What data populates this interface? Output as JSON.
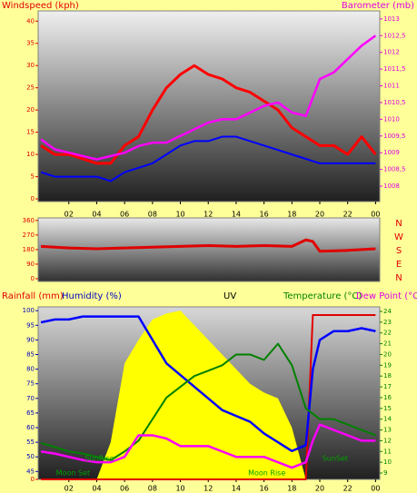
{
  "chart_data": [
    {
      "type": "line",
      "labels": [
        {
          "text": "Windspeed (kph)",
          "color": "#e00000"
        },
        {
          "text": "Barometer (mb)",
          "color": "#e000e0"
        }
      ],
      "x": [
        0,
        1,
        2,
        3,
        4,
        5,
        6,
        7,
        8,
        9,
        10,
        11,
        12,
        13,
        14,
        15,
        16,
        17,
        18,
        19,
        20,
        21,
        22,
        23,
        24
      ],
      "xlim": [
        -0.2,
        24.3
      ],
      "xticks": [
        {
          "value": 2,
          "label": "02"
        },
        {
          "value": 4,
          "label": "04"
        },
        {
          "value": 6,
          "label": "06"
        },
        {
          "value": 8,
          "label": "08"
        },
        10,
        12,
        14,
        16,
        18,
        20,
        22,
        {
          "value": 24,
          "label": "00"
        }
      ],
      "ylim": [
        -0.6,
        42.3
      ],
      "yticks": [
        0,
        5,
        10,
        15,
        20,
        25,
        30,
        35,
        40
      ],
      "ytick_color": "#e00000",
      "y2lim": [
        1007.54,
        1013.24
      ],
      "y2ticks": [
        1008,
        {
          "value": 1008.5,
          "label": "1008,5"
        },
        1009,
        {
          "value": 1009.5,
          "label": "1009,5"
        },
        1010,
        {
          "value": 1010.5,
          "label": "1010,5"
        },
        1011,
        {
          "value": 1011.5,
          "label": "1011,5"
        },
        1012,
        {
          "value": 1012.5,
          "label": "1012,5"
        },
        1013
      ],
      "y2tick_color": "#e000e0",
      "series": [
        {
          "name": "Wind gust",
          "color": "#ff0000",
          "width": 3,
          "values": [
            12,
            10,
            10,
            9,
            8,
            8,
            12,
            14,
            20,
            25,
            28,
            30,
            28,
            27,
            25,
            24,
            22,
            20,
            16,
            14,
            12,
            12,
            10,
            14,
            10
          ]
        },
        {
          "name": "Wind average",
          "color": "#0000ff",
          "width": 2,
          "values": [
            6,
            5,
            5,
            5,
            5,
            4,
            6,
            7,
            8,
            10,
            12,
            13,
            13,
            14,
            14,
            13,
            12,
            11,
            10,
            9,
            8,
            8,
            8,
            8,
            8
          ]
        },
        {
          "name": "Barometer",
          "color": "#ff00ff",
          "width": 2.5,
          "axis": "y2",
          "values": [
            1009.4,
            1009.1,
            1009.0,
            1008.9,
            1008.8,
            1008.9,
            1009.0,
            1009.2,
            1009.3,
            1009.3,
            1009.5,
            1009.7,
            1009.9,
            1010.0,
            1010.0,
            1010.2,
            1010.4,
            1010.5,
            1010.2,
            1010.1,
            1011.2,
            1011.4,
            1011.8,
            1012.2,
            1012.5
          ]
        }
      ]
    },
    {
      "type": "line",
      "compass_labels": [
        "N",
        "W",
        "S",
        "E",
        "N"
      ],
      "x": [
        0,
        2,
        4,
        6,
        8,
        10,
        12,
        14,
        16,
        18,
        19,
        19.5,
        20,
        22,
        24
      ],
      "xlim": [
        -0.2,
        24.3
      ],
      "ylim": [
        -17,
        376
      ],
      "yticks": [
        0,
        90,
        180,
        270,
        360
      ],
      "ytick_color": "#e00000",
      "series": [
        {
          "name": "Wind direction",
          "color": "#e00000",
          "width": 3,
          "values": [
            200,
            190,
            185,
            190,
            195,
            200,
            205,
            200,
            205,
            200,
            240,
            230,
            170,
            175,
            185
          ]
        }
      ]
    },
    {
      "type": "line",
      "labels": [
        {
          "text": "Rainfall (mm)",
          "color": "#e00000"
        },
        {
          "text": "Humidity (%)",
          "color": "#0000c0"
        },
        {
          "text": "UV",
          "color": "#000000"
        },
        {
          "text": "Temperature (°C)",
          "color": "#008000"
        },
        {
          "text": "Dew Point (°C)",
          "color": "#e000e0"
        }
      ],
      "annotations": [
        {
          "text": "SunRise",
          "x": 4.2,
          "color": "#00a000"
        },
        {
          "text": "SunSet",
          "x": 21.1,
          "color": "#00a000"
        },
        {
          "text": "Moon Set",
          "x": 2.3,
          "color": "#00a000"
        },
        {
          "text": "Moon Rise",
          "x": 16.2,
          "color": "#00a000"
        }
      ],
      "x": [
        0,
        1,
        2,
        3,
        4,
        5,
        6,
        7,
        8,
        9,
        10,
        11,
        12,
        13,
        14,
        15,
        16,
        17,
        18,
        19,
        19.5,
        20,
        21,
        22,
        23,
        24
      ],
      "xlim": [
        -0.2,
        24.3
      ],
      "xticks": [
        {
          "value": 2,
          "label": "02"
        },
        {
          "value": 4,
          "label": "04"
        },
        {
          "value": 6,
          "label": "06"
        },
        {
          "value": 8,
          "label": "08"
        },
        10,
        12,
        14,
        16,
        18,
        20,
        22,
        {
          "value": 24,
          "label": "00"
        }
      ],
      "ylim": [
        42.3,
        101.3
      ],
      "yticks": [
        45,
        50,
        55,
        60,
        65,
        70,
        75,
        80,
        85,
        90,
        95,
        100
      ],
      "ytick_color": "#0000c0",
      "y2lim": [
        8.41,
        24.42
      ],
      "y2ticks": [
        9,
        10,
        11,
        12,
        13,
        14,
        15,
        16,
        17,
        18,
        19,
        20,
        21,
        22,
        23,
        24
      ],
      "y2tick_color": "#008000",
      "y3lim": [
        0,
        1.05
      ],
      "y3ticks": [
        0
      ],
      "y3tick_color": "#e00000",
      "series": [
        {
          "name": "UV",
          "color": "#ffff00",
          "style": "area",
          "values": [
            42.3,
            42.3,
            42.3,
            42.3,
            42.3,
            55,
            82,
            90,
            97,
            99,
            100,
            95,
            90,
            85,
            80,
            75,
            72,
            70,
            60,
            42.3,
            42.3,
            42.3,
            42.3,
            42.3,
            42.3,
            42.3
          ]
        },
        {
          "name": "Rainfall",
          "color": "#e00000",
          "width": 2,
          "axis": "y3",
          "values": [
            0,
            0,
            0,
            0,
            0,
            0,
            0,
            0,
            0,
            0,
            0,
            0,
            0,
            0,
            0,
            0,
            0,
            0,
            0,
            0,
            1,
            1,
            1,
            1,
            1,
            1
          ]
        },
        {
          "name": "Humidity",
          "color": "#0000ff",
          "width": 2.5,
          "values": [
            96,
            97,
            97,
            98,
            98,
            98,
            98,
            98,
            90,
            82,
            78,
            74,
            70,
            66,
            64,
            62,
            58,
            55,
            52,
            54,
            80,
            90,
            93,
            93,
            94,
            93
          ]
        },
        {
          "name": "Temperature",
          "color": "#008000",
          "width": 2,
          "axis": "y2",
          "values": [
            11.8,
            11.4,
            11,
            10.8,
            10.5,
            10.2,
            11,
            12,
            14,
            16,
            17,
            18,
            18.5,
            19,
            20,
            20,
            19.5,
            21,
            19,
            15,
            14.5,
            14,
            14,
            13.5,
            13,
            12.5
          ]
        },
        {
          "name": "Dew Point",
          "color": "#ff00ff",
          "width": 2.5,
          "axis": "y2",
          "values": [
            11,
            10.8,
            10.5,
            10.2,
            10,
            10,
            10.5,
            12.5,
            12.5,
            12.2,
            11.5,
            11.5,
            11.5,
            11,
            10.5,
            10.5,
            10.5,
            10,
            9.5,
            10,
            12,
            13.5,
            13,
            12.5,
            12,
            12
          ]
        }
      ]
    }
  ]
}
